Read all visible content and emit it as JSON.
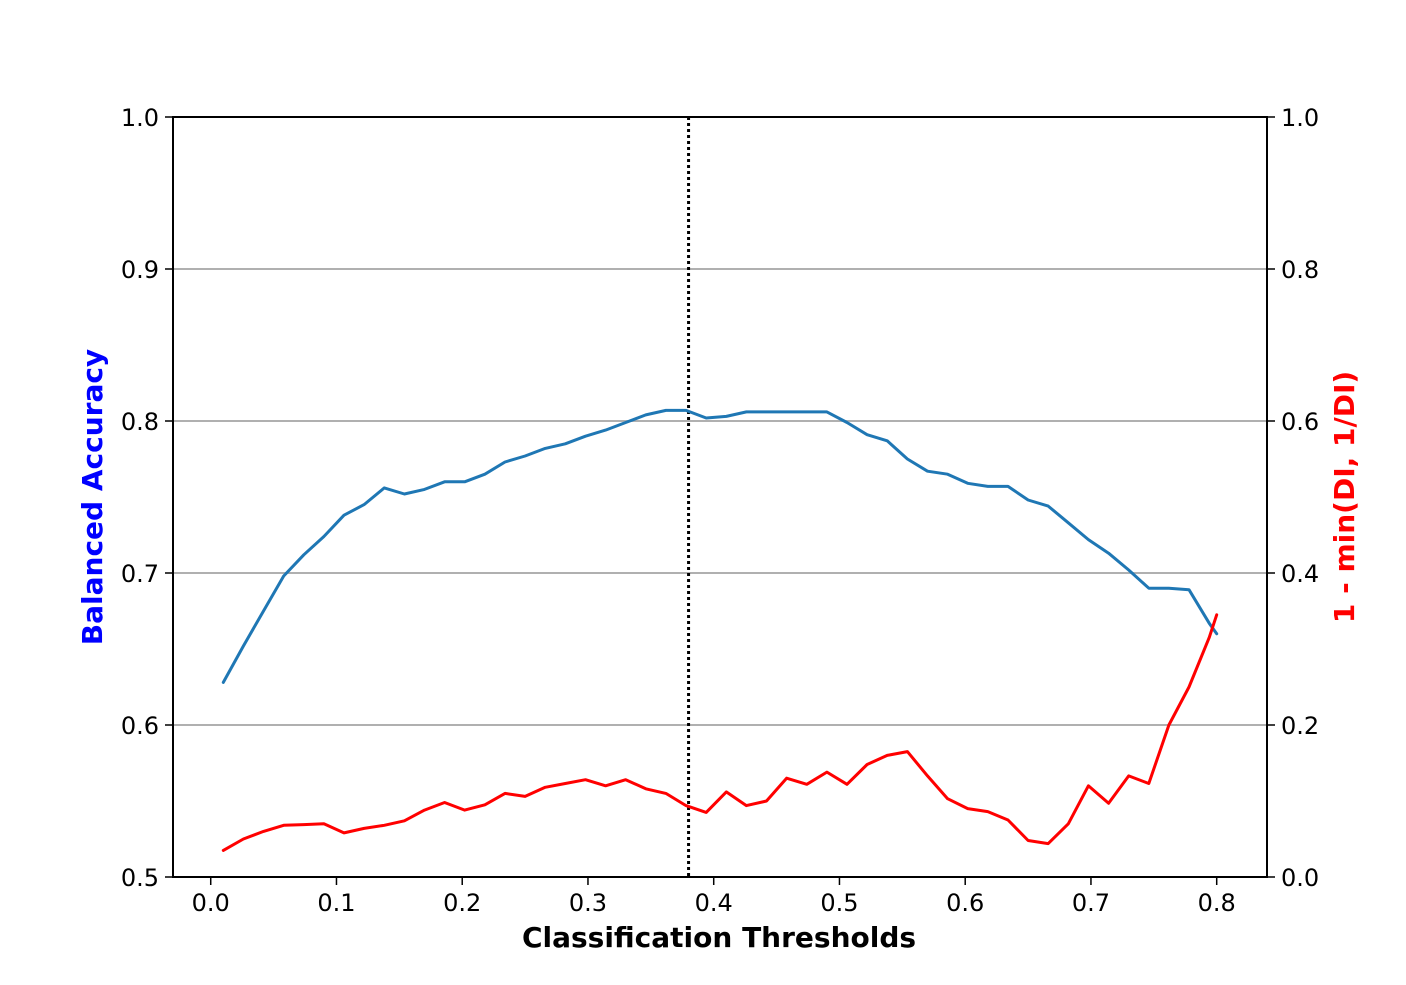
{
  "chart_data": {
    "type": "line",
    "xlabel": "Classification Thresholds",
    "ylabel": "Balanced Accuracy",
    "ylabel_right": "1 - min(DI, 1/DI)",
    "xlim": [
      -0.03,
      0.84
    ],
    "ylim": [
      0.5,
      1.0
    ],
    "ylim_right": [
      0.0,
      1.0
    ],
    "xticks": [
      "0.0",
      "0.1",
      "0.2",
      "0.3",
      "0.4",
      "0.5",
      "0.6",
      "0.7",
      "0.8"
    ],
    "xtick_values": [
      0.0,
      0.1,
      0.2,
      0.3,
      0.4,
      0.5,
      0.6,
      0.7,
      0.8
    ],
    "yticks": [
      "0.5",
      "0.6",
      "0.7",
      "0.8",
      "0.9",
      "1.0"
    ],
    "ytick_values": [
      0.5,
      0.6,
      0.7,
      0.8,
      0.9,
      1.0
    ],
    "yticks_right": [
      "0.0",
      "0.2",
      "0.4",
      "0.6",
      "0.8",
      "1.0"
    ],
    "ytick_right_values": [
      0.0,
      0.2,
      0.4,
      0.6,
      0.8,
      1.0
    ],
    "grid": "horizontal",
    "vline": {
      "x": 0.38,
      "style": "dotted",
      "color": "#000000"
    },
    "colors": {
      "ylabel": "#0000ff",
      "ylabel_right": "#ff0000"
    },
    "x": [
      0.01,
      0.026,
      0.042,
      0.058,
      0.074,
      0.09,
      0.106,
      0.122,
      0.138,
      0.154,
      0.17,
      0.186,
      0.202,
      0.218,
      0.234,
      0.25,
      0.266,
      0.282,
      0.298,
      0.314,
      0.33,
      0.346,
      0.362,
      0.378,
      0.394,
      0.41,
      0.426,
      0.442,
      0.458,
      0.474,
      0.49,
      0.506,
      0.522,
      0.538,
      0.554,
      0.57,
      0.586,
      0.602,
      0.618,
      0.634,
      0.65,
      0.666,
      0.682,
      0.698,
      0.714,
      0.73,
      0.746,
      0.762,
      0.778,
      0.794,
      0.8
    ],
    "series": [
      {
        "axis": "left",
        "color": "#1f77b4",
        "values": [
          0.628,
          0.652,
          0.675,
          0.698,
          0.712,
          0.724,
          0.738,
          0.745,
          0.756,
          0.752,
          0.755,
          0.76,
          0.76,
          0.765,
          0.773,
          0.777,
          0.782,
          0.785,
          0.79,
          0.794,
          0.799,
          0.804,
          0.807,
          0.807,
          0.802,
          0.803,
          0.806,
          0.806,
          0.806,
          0.806,
          0.806,
          0.799,
          0.791,
          0.787,
          0.775,
          0.767,
          0.765,
          0.759,
          0.757,
          0.757,
          0.748,
          0.744,
          0.733,
          0.722,
          0.713,
          0.702,
          0.69,
          0.69,
          0.689,
          0.667,
          0.66
        ]
      },
      {
        "axis": "right",
        "color": "#ff0000",
        "values": [
          0.035,
          0.05,
          0.06,
          0.068,
          0.069,
          0.07,
          0.058,
          0.064,
          0.068,
          0.074,
          0.088,
          0.098,
          0.088,
          0.095,
          0.11,
          0.106,
          0.118,
          0.123,
          0.128,
          0.12,
          0.128,
          0.116,
          0.11,
          0.094,
          0.085,
          0.112,
          0.094,
          0.1,
          0.13,
          0.122,
          0.138,
          0.122,
          0.148,
          0.16,
          0.165,
          0.133,
          0.103,
          0.09,
          0.086,
          0.075,
          0.048,
          0.044,
          0.07,
          0.12,
          0.097,
          0.133,
          0.123,
          0.2,
          0.25,
          0.315,
          0.345
        ]
      }
    ]
  }
}
